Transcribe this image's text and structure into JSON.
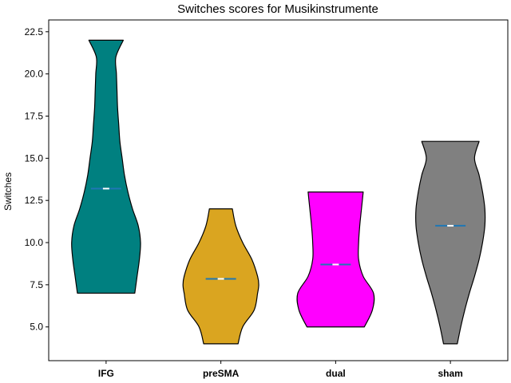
{
  "chart_data": {
    "type": "violin",
    "title": "Switches scores for Musikinstrumente",
    "xlabel": "",
    "ylabel": "Switches",
    "ylim": [
      3.0,
      23.2
    ],
    "yticks": [
      "5.0",
      "7.5",
      "10.0",
      "12.5",
      "15.0",
      "17.5",
      "20.0",
      "22.5"
    ],
    "grid": false,
    "categories": [
      "IFG",
      "preSMA",
      "dual",
      "sham"
    ],
    "series": [
      {
        "category": "IFG",
        "color": "#008080",
        "min": 7.0,
        "max": 22.0,
        "mean": 13.2,
        "density": [
          [
            7.0,
            0.5
          ],
          [
            8.0,
            0.54
          ],
          [
            9.0,
            0.58
          ],
          [
            10.0,
            0.6
          ],
          [
            11.0,
            0.56
          ],
          [
            12.0,
            0.46
          ],
          [
            13.0,
            0.38
          ],
          [
            14.0,
            0.32
          ],
          [
            15.0,
            0.28
          ],
          [
            16.0,
            0.24
          ],
          [
            17.0,
            0.22
          ],
          [
            18.0,
            0.2
          ],
          [
            19.0,
            0.19
          ],
          [
            20.0,
            0.18
          ],
          [
            21.0,
            0.17
          ],
          [
            22.0,
            0.3
          ]
        ]
      },
      {
        "category": "preSMA",
        "color": "#DAA520",
        "min": 4.0,
        "max": 12.0,
        "mean": 7.85,
        "density": [
          [
            4.0,
            0.3
          ],
          [
            5.0,
            0.38
          ],
          [
            6.0,
            0.58
          ],
          [
            7.0,
            0.64
          ],
          [
            7.5,
            0.66
          ],
          [
            8.0,
            0.64
          ],
          [
            9.0,
            0.54
          ],
          [
            10.0,
            0.38
          ],
          [
            11.0,
            0.26
          ],
          [
            12.0,
            0.2
          ]
        ]
      },
      {
        "category": "dual",
        "color": "#FF00FF",
        "min": 5.0,
        "max": 13.0,
        "mean": 8.7,
        "density": [
          [
            5.0,
            0.5
          ],
          [
            6.0,
            0.64
          ],
          [
            7.0,
            0.66
          ],
          [
            8.0,
            0.48
          ],
          [
            9.0,
            0.4
          ],
          [
            10.0,
            0.4
          ],
          [
            11.0,
            0.42
          ],
          [
            12.0,
            0.45
          ],
          [
            13.0,
            0.48
          ]
        ]
      },
      {
        "category": "sham",
        "color": "#808080",
        "min": 4.0,
        "max": 16.0,
        "mean": 11.0,
        "density": [
          [
            4.0,
            0.12
          ],
          [
            5.0,
            0.18
          ],
          [
            6.0,
            0.25
          ],
          [
            7.0,
            0.33
          ],
          [
            8.0,
            0.42
          ],
          [
            9.0,
            0.5
          ],
          [
            10.0,
            0.56
          ],
          [
            11.0,
            0.6
          ],
          [
            12.0,
            0.6
          ],
          [
            13.0,
            0.56
          ],
          [
            14.0,
            0.5
          ],
          [
            15.0,
            0.42
          ],
          [
            16.0,
            0.5
          ]
        ]
      }
    ]
  }
}
